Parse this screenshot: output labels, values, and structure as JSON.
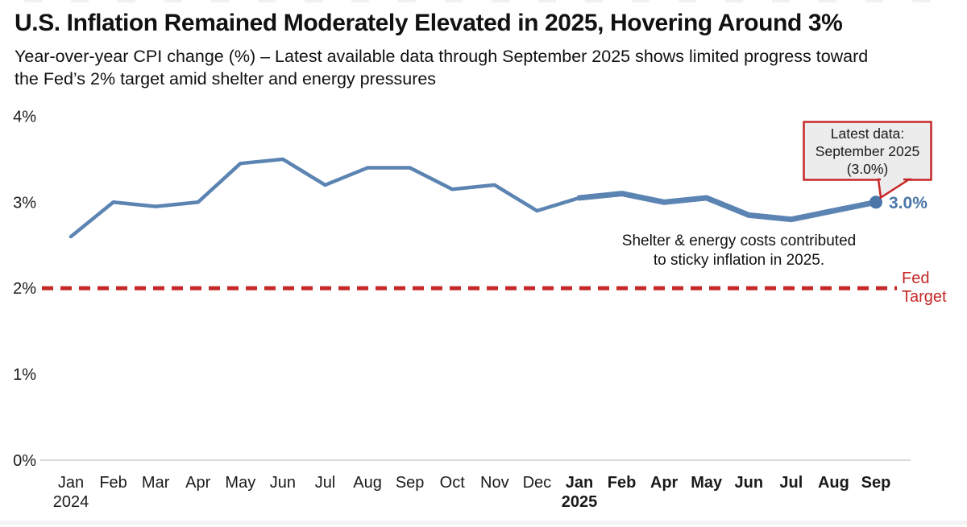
{
  "header": {
    "title": "U.S. Inflation Remained Moderately Elevated in 2025, Hovering Around 3%",
    "subtitle_line1": "Year-over-year CPI change (%) – Latest available data through September 2025 shows limited progress toward",
    "subtitle_line2": "the Fed’s 2% target amid shelter and energy pressures"
  },
  "chart_data": {
    "type": "line",
    "title": "U.S. Inflation Remained Moderately Elevated in 2025, Hovering Around 3%",
    "subtitle": "Year-over-year CPI change (%) – Latest available data through September 2025 shows limited progress toward the Fed’s 2% target amid shelter and energy pressures",
    "categories": [
      "Jan 2024",
      "Feb",
      "Mar",
      "Apr",
      "May",
      "Jun",
      "Jul",
      "Aug",
      "Sep",
      "Oct",
      "Nov",
      "Dec",
      "Jan 2025",
      "Feb",
      "Apr",
      "May",
      "Jun",
      "Jul",
      "Aug",
      "Sep"
    ],
    "series": [
      {
        "name": "Year-over-year CPI change (%)",
        "values": [
          2.6,
          3.0,
          2.95,
          3.0,
          3.45,
          3.5,
          3.2,
          3.4,
          3.4,
          3.15,
          3.2,
          2.9,
          3.05,
          3.1,
          3.0,
          3.05,
          2.85,
          2.8,
          2.9,
          3.0
        ]
      }
    ],
    "ylim": [
      0,
      4
    ],
    "ytick_labels": [
      "0%",
      "1%",
      "2%",
      "3%",
      "4%"
    ],
    "grid": false,
    "legend": false,
    "bold_from_index": 12,
    "year_labels": [
      {
        "index": 0,
        "text": "2024"
      },
      {
        "index": 12,
        "text": "2025"
      }
    ],
    "reference_line": {
      "value": 2,
      "label_line1": "Fed",
      "label_line2": "Target"
    },
    "end_point_label": "3.0%",
    "callout": {
      "line1": "Latest data:",
      "line2": "September 2025",
      "line3": "(3.0%)"
    },
    "note_line1": "Shelter & energy costs contributed",
    "note_line2": "to sticky inflation in 2025.",
    "colors": {
      "line": "#5b84b3",
      "line_dark": "#4a76a8",
      "target_red": "#c62828",
      "callout_bg": "#ececec",
      "axis_gray": "#d9d9d9",
      "text": "#1a1a1a"
    }
  }
}
